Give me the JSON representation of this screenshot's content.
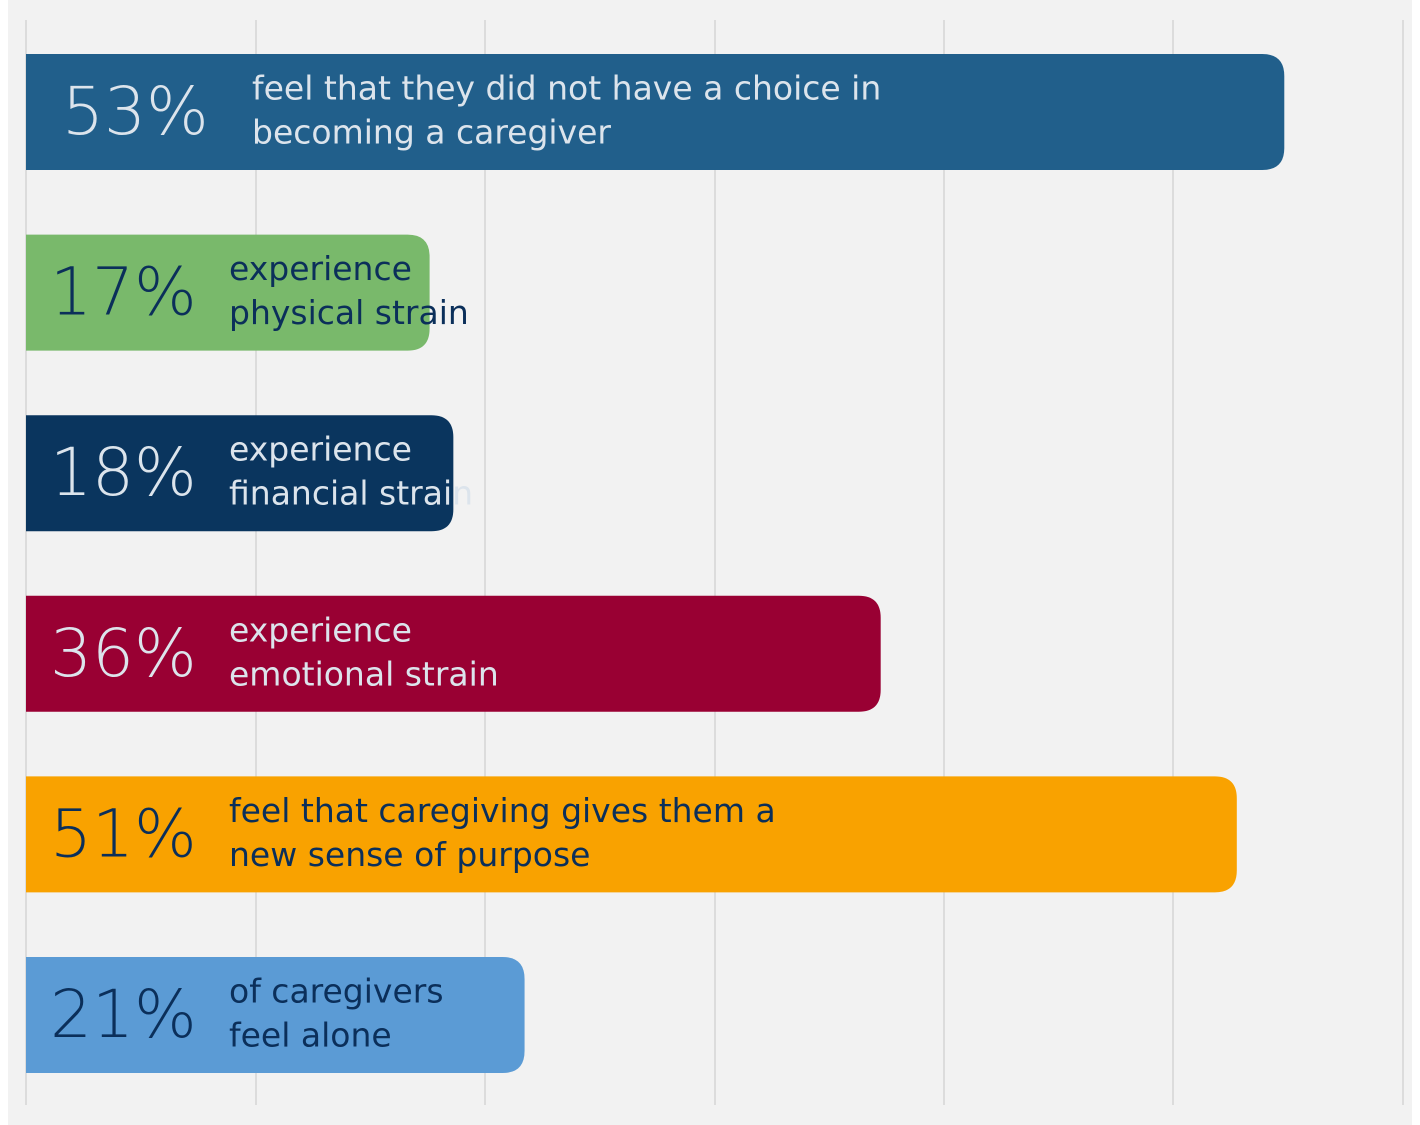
{
  "chart_data": {
    "type": "bar",
    "orientation": "horizontal",
    "categories": [
      [
        "feel that they did not have a choice in",
        "becoming a caregiver"
      ],
      [
        "experience",
        "physical strain"
      ],
      [
        "experience",
        "financial strain"
      ],
      [
        "experience",
        "emotional strain"
      ],
      [
        "feel that caregiving gives them a",
        "new sense of purpose"
      ],
      [
        "of caregivers",
        "feel alone"
      ]
    ],
    "values": [
      53,
      17,
      18,
      36,
      51,
      21
    ],
    "value_labels": [
      "53%",
      "17%",
      "18%",
      "36%",
      "51%",
      "21%"
    ],
    "colors": [
      "#215f8b",
      "#79b96b",
      "#0a355e",
      "#990033",
      "#f9a200",
      "#5b9bd5"
    ],
    "label_colors": [
      "#dce4ec",
      "#0b2f5a",
      "#dce4ec",
      "#dce4ec",
      "#0b2f5a",
      "#0b2f5a"
    ],
    "xlim": [
      0,
      58
    ],
    "grid": true
  }
}
